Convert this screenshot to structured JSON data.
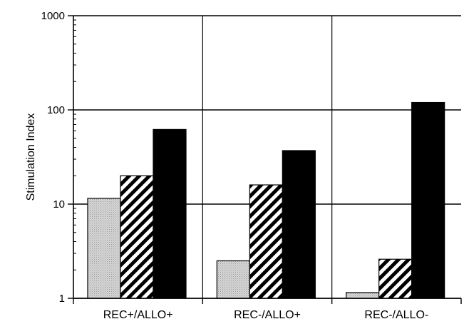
{
  "chart_data": {
    "type": "bar",
    "scale": "log",
    "ylim": [
      1,
      1000
    ],
    "yticks": [
      "1",
      "10",
      "100",
      "1000"
    ],
    "ylabel": "Stimulation Index",
    "xlabel": "",
    "title": "",
    "grid": true,
    "legend": "none",
    "categories": [
      "REC+/ALLO+",
      "REC-/ALLO+",
      "REC-/ALLO-"
    ],
    "series": [
      {
        "pattern": "stipple",
        "color": "#c8c8c8",
        "values": [
          11.5,
          2.5,
          1.15
        ]
      },
      {
        "pattern": "diagonal-hatch",
        "color": "#000000",
        "values": [
          20,
          16,
          2.6
        ]
      },
      {
        "pattern": "solid",
        "color": "#000000",
        "values": [
          62,
          37,
          120
        ]
      }
    ]
  }
}
